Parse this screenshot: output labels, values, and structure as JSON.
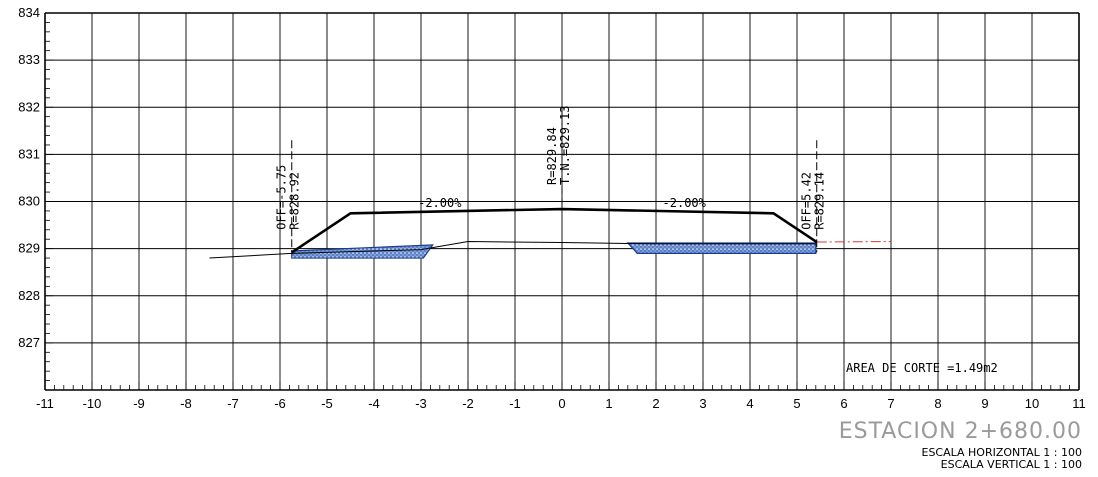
{
  "chart_data": {
    "type": "cross-section",
    "x_ticks": [
      "-11",
      "-10",
      "-9",
      "-8",
      "-7",
      "-6",
      "-5",
      "-4",
      "-3",
      "-2",
      "-1",
      "0",
      "1",
      "2",
      "3",
      "4",
      "5",
      "6",
      "7",
      "8",
      "9",
      "10",
      "11"
    ],
    "y_ticks": [
      "834",
      "833",
      "832",
      "831",
      "830",
      "829",
      "828",
      "827"
    ],
    "xlim": [
      -11,
      11
    ],
    "ylim": [
      826,
      834
    ],
    "grid": true,
    "design_section": [
      [
        -5.75,
        828.92
      ],
      [
        -4.5,
        829.75
      ],
      [
        0,
        829.84
      ],
      [
        4.5,
        829.75
      ],
      [
        5.42,
        829.14
      ]
    ],
    "natural_ground": [
      [
        -7.5,
        828.8
      ],
      [
        -5.75,
        828.9
      ],
      [
        -3,
        828.98
      ],
      [
        -2,
        829.15
      ],
      [
        0,
        829.13
      ],
      [
        2,
        829.1
      ],
      [
        5.4,
        829.1
      ]
    ],
    "natural_ground_extension": [
      [
        5.42,
        829.14
      ],
      [
        7,
        829.15
      ]
    ],
    "cut_areas": [
      [
        [
          -5.75,
          828.95
        ],
        [
          -2.75,
          829.08
        ],
        [
          -2.95,
          828.8
        ],
        [
          -5.75,
          828.8
        ]
      ],
      [
        [
          1.4,
          829.12
        ],
        [
          5.4,
          829.12
        ],
        [
          5.4,
          828.9
        ],
        [
          1.6,
          828.9
        ]
      ]
    ],
    "points": [
      {
        "x": -5.75,
        "offset_label": "OFF=-5.75",
        "r_label": "R=828.92"
      },
      {
        "x": 0,
        "r_label": "R=829.84",
        "tn_label": "T.N.=829.13"
      },
      {
        "x": 5.42,
        "offset_label": "OFF=5.42",
        "r_label": "R=829.14"
      }
    ],
    "slope_labels": [
      {
        "text": "-2.00%",
        "x": -2.6,
        "y": 829.8
      },
      {
        "text": "-2.00%",
        "x": 2.6,
        "y": 829.8
      }
    ],
    "area_label": "AREA DE CORTE =1.49m2",
    "colors": {
      "grid": "#000000",
      "design": "#000000",
      "ground": "#000000",
      "extension": "#d33a3a",
      "cut_fill": "#5b82c9",
      "cut_stroke": "#1a3d8f"
    }
  },
  "station": "ESTACION  2+680.00",
  "scale_horizontal": "ESCALA HORIZONTAL 1 : 100",
  "scale_vertical": "ESCALA VERTICAL 1 : 100"
}
